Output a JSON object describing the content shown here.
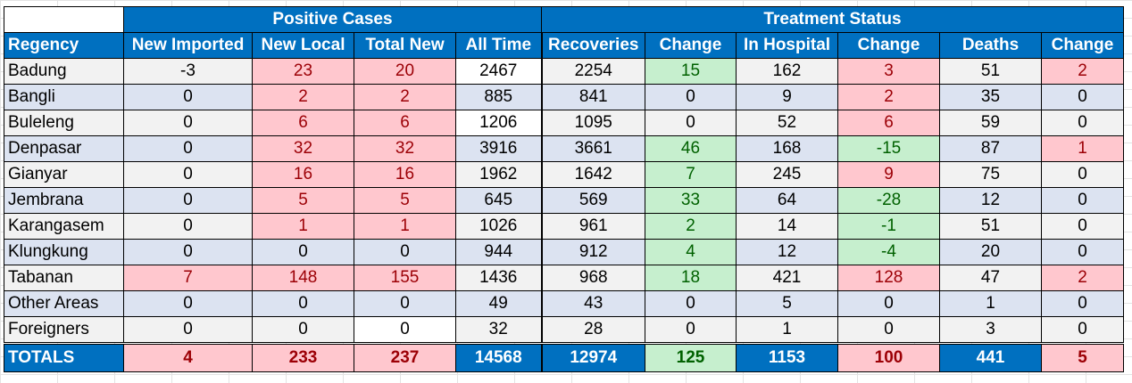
{
  "groups": {
    "positive": "Positive Cases",
    "treatment": "Treatment Status"
  },
  "columns": [
    "Regency",
    "New Imported",
    "New Local",
    "Total New",
    "All Time",
    "Recoveries",
    "Change",
    "In Hospital",
    "Change",
    "Deaths",
    "Change"
  ],
  "rows": [
    [
      "Badung",
      "-3",
      "23",
      "20",
      "2467",
      "2254",
      "15",
      "162",
      "3",
      "51",
      "2"
    ],
    [
      "Bangli",
      "0",
      "2",
      "2",
      "885",
      "841",
      "0",
      "9",
      "2",
      "35",
      "0"
    ],
    [
      "Buleleng",
      "0",
      "6",
      "6",
      "1206",
      "1095",
      "0",
      "52",
      "6",
      "59",
      "0"
    ],
    [
      "Denpasar",
      "0",
      "32",
      "32",
      "3916",
      "3661",
      "46",
      "168",
      "-15",
      "87",
      "1"
    ],
    [
      "Gianyar",
      "0",
      "16",
      "16",
      "1962",
      "1642",
      "7",
      "245",
      "9",
      "75",
      "0"
    ],
    [
      "Jembrana",
      "0",
      "5",
      "5",
      "645",
      "569",
      "33",
      "64",
      "-28",
      "12",
      "0"
    ],
    [
      "Karangasem",
      "0",
      "1",
      "1",
      "1026",
      "961",
      "2",
      "14",
      "-1",
      "51",
      "0"
    ],
    [
      "Klungkung",
      "0",
      "0",
      "0",
      "944",
      "912",
      "4",
      "12",
      "-4",
      "20",
      "0"
    ],
    [
      "Tabanan",
      "7",
      "148",
      "155",
      "1436",
      "968",
      "18",
      "421",
      "128",
      "47",
      "2"
    ],
    [
      "Other Areas",
      "0",
      "0",
      "0",
      "49",
      "43",
      "0",
      "5",
      "0",
      "1",
      "0"
    ],
    [
      "Foreigners",
      "0",
      "0",
      "0",
      "32",
      "28",
      "0",
      "1",
      "0",
      "3",
      "0"
    ]
  ],
  "totals": [
    "TOTALS",
    "4",
    "233",
    "237",
    "14568",
    "12974",
    "125",
    "1153",
    "100",
    "441",
    "5"
  ],
  "colors": {
    "header_blue": "#0070c0",
    "pink_fill": "#ffc7ce",
    "pink_text": "#9c0006",
    "green_fill": "#c6efce",
    "green_text": "#006100",
    "band_gray": "#f2f2f2",
    "band_blue": "#dce3f1"
  }
}
